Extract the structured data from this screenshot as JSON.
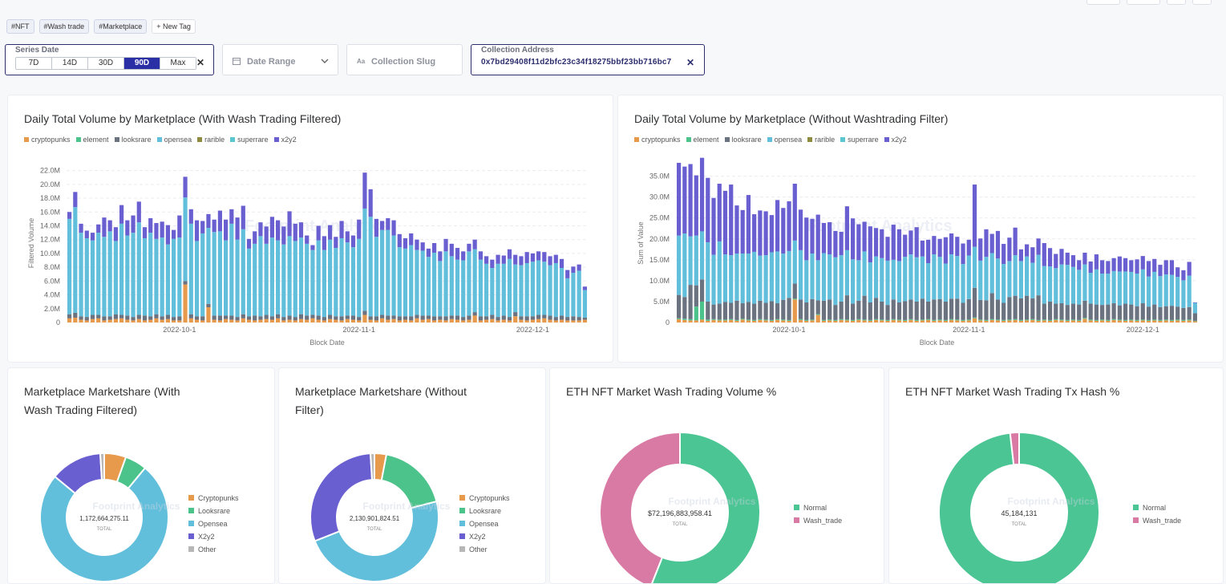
{
  "tags": [
    "#NFT",
    "#Wash trade",
    "#Marketplace"
  ],
  "new_tag_label": "New Tag",
  "filters": {
    "series_date": {
      "label": "Series Date",
      "options": [
        "7D",
        "14D",
        "30D",
        "90D",
        "Max"
      ],
      "selected": "90D"
    },
    "date_range": {
      "placeholder": "Date Range"
    },
    "collection_slug": {
      "placeholder": "Collection Slug"
    },
    "collection_address": {
      "label": "Collection Address",
      "value": "0x7bd29408f11d2bfc23c34f18275bbf23bb716bc7"
    }
  },
  "colors": {
    "cryptopunks": "#e89a4c",
    "element": "#4cc38a",
    "looksrare": "#6b7280",
    "opensea": "#62bfdc",
    "rarible": "#8e8a3f",
    "superrare": "#5cc6d0",
    "x2y2": "#6a5fd0",
    "other": "#b7b7b7",
    "normal": "#4cc594",
    "wash_trade": "#d97aa5"
  },
  "chart_data": [
    {
      "type": "bar",
      "title": "Daily Total Volume by Marketplace (With Wash Trading Filtered)",
      "xlabel": "Block Date",
      "ylabel": "Filtered Volume",
      "ylim": [
        0,
        23000000
      ],
      "yticks": [
        "0",
        "2.0M",
        "4.0M",
        "6.0M",
        "8.0M",
        "10.0M",
        "12.0M",
        "14.0M",
        "16.0M",
        "18.0M",
        "20.0M",
        "22.0M"
      ],
      "xticks": [
        {
          "label": "2022-10-1",
          "index": 19
        },
        {
          "label": "2022-11-1",
          "index": 50
        },
        {
          "label": "2022-12-1",
          "index": 80
        }
      ],
      "legend": [
        "cryptopunks",
        "element",
        "looksrare",
        "opensea",
        "rarible",
        "superrare",
        "x2y2"
      ],
      "stack_order": [
        "cryptopunks",
        "looksrare",
        "opensea",
        "x2y2"
      ],
      "series": [
        {
          "name": "cryptopunks",
          "values": [
            0.6,
            0.7,
            0.4,
            0.3,
            0.5,
            0.6,
            0.3,
            0.4,
            0.5,
            0.6,
            0.4,
            0.3,
            0.5,
            0.3,
            0.4,
            0.6,
            0.4,
            0.5,
            0.3,
            0.3,
            5.5,
            0.6,
            0.4,
            0.3,
            2.2,
            0.4,
            0.3,
            0.5,
            0.4,
            0.3,
            0.6,
            0.4,
            0.3,
            0.4,
            0.5,
            0.4,
            0.6,
            0.3,
            0.4,
            0.3,
            0.5,
            0.4,
            0.6,
            0.4,
            0.3,
            0.5,
            0.4,
            0.3,
            0.5,
            0.4,
            0.3,
            1.1,
            0.4,
            0.3,
            0.6,
            0.4,
            0.5,
            0.3,
            0.4,
            0.3,
            0.6,
            0.4,
            0.5,
            0.3,
            0.4,
            0.3,
            0.5,
            0.4,
            0.3,
            0.4,
            1.0,
            0.3,
            0.4,
            0.5,
            0.3,
            0.4,
            0.3,
            0.9,
            0.4,
            0.3,
            0.4,
            0.5,
            0.6,
            0.4,
            0.3,
            0.4,
            0.3,
            0.3,
            0.3,
            0.4
          ]
        },
        {
          "name": "looksrare",
          "values": [
            0.6,
            0.7,
            0.5,
            0.5,
            0.6,
            0.5,
            0.6,
            0.5,
            0.7,
            0.5,
            0.6,
            0.5,
            0.6,
            0.7,
            0.5,
            0.6,
            0.5,
            0.6,
            0.5,
            0.6,
            0.5,
            0.6,
            0.5,
            0.6,
            0.5,
            0.6,
            0.7,
            0.5,
            0.6,
            0.5,
            0.6,
            0.5,
            0.7,
            0.5,
            0.6,
            0.5,
            0.6,
            0.5,
            0.6,
            0.5,
            0.7,
            0.6,
            0.5,
            0.6,
            0.5,
            0.6,
            0.5,
            0.6,
            0.5,
            0.6,
            0.5,
            0.6,
            0.5,
            0.6,
            0.5,
            0.6,
            0.5,
            0.6,
            0.5,
            0.6,
            0.5,
            0.6,
            0.5,
            0.6,
            0.5,
            0.6,
            0.5,
            0.6,
            0.5,
            0.6,
            0.5,
            0.6,
            0.5,
            0.6,
            0.5,
            0.6,
            0.5,
            0.6,
            0.5,
            0.6,
            0.5,
            0.6,
            0.5,
            0.6,
            0.5,
            0.6,
            0.5,
            0.6,
            0.5,
            0.3
          ]
        },
        {
          "name": "opensea",
          "values": [
            13.8,
            15.3,
            12.1,
            11.4,
            10.8,
            11.9,
            11.5,
            12.3,
            10.6,
            13.2,
            11.6,
            12.2,
            13.4,
            11.2,
            12.1,
            10.9,
            11.4,
            10.2,
            11.3,
            11.4,
            12.1,
            13.1,
            10.9,
            12.0,
            11.0,
            12.1,
            12.2,
            10.9,
            13.3,
            11.2,
            12.3,
            9.8,
            10.4,
            11.6,
            10.3,
            11.4,
            10.7,
            10.5,
            11.5,
            11.0,
            11.1,
            10.4,
            9.4,
            10.9,
            9.7,
            10.9,
            9.9,
            11.3,
            10.6,
            9.9,
            11.3,
            14.8,
            14.4,
            11.5,
            12.3,
            12.4,
            11.6,
            10.0,
            9.8,
            10.3,
            9.4,
            9.4,
            8.5,
            9.2,
            8.0,
            9.4,
            8.6,
            8.1,
            8.2,
            9.3,
            9.1,
            8.2,
            7.6,
            6.8,
            7.7,
            7.5,
            8.4,
            6.9,
            7.4,
            7.7,
            7.9,
            7.9,
            7.7,
            7.3,
            7.8,
            6.9,
            5.6,
            6.3,
            6.7,
            4.0
          ]
        },
        {
          "name": "x2y2",
          "values": [
            1.0,
            2.2,
            1.3,
            1.1,
            1.1,
            1.2,
            2.8,
            1.6,
            2.0,
            2.7,
            2.2,
            2.5,
            3.0,
            1.6,
            2.1,
            2.3,
            2.3,
            2.8,
            1.3,
            3.2,
            3.0,
            2.1,
            3.0,
            1.8,
            2.0,
            1.8,
            3.0,
            3.0,
            2.1,
            3.2,
            3.4,
            1.4,
            1.8,
            2.0,
            2.5,
            3.0,
            2.9,
            2.6,
            3.6,
            2.5,
            2.2,
            1.2,
            0.7,
            2.1,
            2.0,
            2.1,
            1.6,
            2.5,
            1.6,
            1.7,
            2.8,
            5.2,
            4.0,
            2.6,
            1.3,
            1.7,
            2.2,
            1.9,
            1.5,
            1.7,
            1.5,
            1.2,
            1.2,
            1.4,
            1.4,
            1.8,
            1.8,
            1.7,
            1.3,
            1.1,
            1.4,
            1.2,
            1.1,
            1.2,
            1.3,
            1.2,
            1.4,
            1.4,
            1.3,
            1.6,
            1.2,
            1.3,
            1.4,
            1.3,
            1.2,
            1.3,
            1.2,
            0.9,
            0.9,
            0.5
          ]
        }
      ]
    },
    {
      "type": "bar",
      "title": "Daily Total Volume by Marketplace (Without Washtrading Filter)",
      "xlabel": "Block Date",
      "ylabel": "Sum of Value",
      "ylim": [
        0,
        38000000
      ],
      "yticks": [
        "0",
        "5.0M",
        "10.0M",
        "15.0M",
        "20.0M",
        "25.0M",
        "30.0M",
        "35.0M"
      ],
      "xticks": [
        {
          "label": "2022-10-1",
          "index": 19
        },
        {
          "label": "2022-11-1",
          "index": 50
        },
        {
          "label": "2022-12-1",
          "index": 80
        }
      ],
      "legend": [
        "cryptopunks",
        "element",
        "looksrare",
        "opensea",
        "rarible",
        "superrare",
        "x2y2"
      ],
      "stack_order": [
        "cryptopunks",
        "element",
        "looksrare",
        "opensea",
        "x2y2"
      ],
      "series": [
        {
          "name": "cryptopunks",
          "values": [
            0.8,
            0.6,
            0.5,
            0.5,
            0.7,
            0.4,
            0.6,
            0.5,
            0.5,
            0.6,
            0.4,
            0.7,
            0.5,
            0.4,
            0.6,
            0.5,
            0.4,
            0.6,
            0.5,
            0.4,
            5.5,
            0.6,
            0.4,
            0.5,
            1.8,
            0.4,
            0.5,
            0.4,
            0.6,
            0.5,
            0.4,
            0.6,
            0.5,
            0.4,
            0.6,
            0.5,
            0.4,
            0.6,
            0.5,
            0.4,
            0.6,
            0.4,
            0.5,
            0.6,
            0.4,
            0.5,
            0.4,
            0.6,
            0.5,
            0.4,
            0.5,
            1.0,
            0.5,
            0.4,
            0.6,
            0.5,
            0.4,
            0.5,
            0.6,
            0.4,
            0.5,
            0.6,
            0.4,
            0.5,
            0.4,
            0.6,
            0.5,
            0.4,
            0.5,
            0.4,
            0.9,
            0.5,
            0.4,
            0.5,
            0.4,
            0.6,
            0.5,
            0.4,
            0.5,
            0.4,
            0.5,
            0.4,
            0.5,
            0.4,
            0.5,
            0.4,
            0.5,
            0.4,
            0.5,
            0.3
          ]
        },
        {
          "name": "element",
          "values": [
            0.2,
            0.3,
            0.3,
            3.3,
            4.3,
            0.3,
            0.2,
            0.2,
            0.2,
            0.2,
            0.2,
            0.2,
            0.2,
            0.2,
            0.2,
            0.2,
            0.2,
            0.2,
            0.2,
            0.2,
            0.2,
            0.2,
            0.2,
            0.2,
            0.2,
            0.2,
            0.2,
            0.2,
            0.2,
            0.2,
            0.2,
            0.2,
            0.2,
            0.2,
            0.2,
            0.2,
            0.2,
            0.2,
            0.2,
            0.2,
            0.2,
            0.2,
            0.2,
            0.2,
            0.2,
            0.2,
            0.2,
            0.2,
            0.2,
            0.2,
            0.2,
            0.2,
            0.2,
            0.2,
            0.2,
            0.2,
            0.2,
            0.2,
            0.2,
            0.2,
            0.2,
            0.2,
            0.2,
            0.2,
            0.2,
            0.2,
            0.2,
            0.2,
            0.2,
            0.2,
            0.2,
            0.2,
            0.2,
            0.2,
            0.2,
            0.2,
            0.2,
            0.2,
            0.2,
            0.2,
            0.2,
            0.2,
            0.2,
            0.2,
            0.2,
            0.2,
            0.2,
            0.2,
            0.2,
            0.1
          ]
        },
        {
          "name": "looksrare",
          "values": [
            5.6,
            5.2,
            8.2,
            5.1,
            5.3,
            4.3,
            3.5,
            3.8,
            4.2,
            3.9,
            4.6,
            3.7,
            4.2,
            3.9,
            4.4,
            4.0,
            4.5,
            3.8,
            4.7,
            5.3,
            3.6,
            4.7,
            4.2,
            4.9,
            3.3,
            4.6,
            4.8,
            3.6,
            4.2,
            5.8,
            3.9,
            4.4,
            5.7,
            4.2,
            5.1,
            4.3,
            3.6,
            4.7,
            4.1,
            4.5,
            4.7,
            4.4,
            5.0,
            4.2,
            4.9,
            4.9,
            4.4,
            4.9,
            5.0,
            4.1,
            4.9,
            7.1,
            4.7,
            4.7,
            6.2,
            4.8,
            4.1,
            5.4,
            5.6,
            5.2,
            5.7,
            5.0,
            5.9,
            3.8,
            4.4,
            3.7,
            3.9,
            3.6,
            3.8,
            3.7,
            4.1,
            3.8,
            3.7,
            3.5,
            3.7,
            3.8,
            3.4,
            3.9,
            3.6,
            3.3,
            3.9,
            3.2,
            3.6,
            3.1,
            3.2,
            3.4,
            3.1,
            2.9,
            3.0,
            1.8
          ]
        },
        {
          "name": "opensea",
          "values": [
            14.2,
            15.2,
            11.6,
            11.9,
            11.5,
            14.2,
            11.9,
            14.9,
            11.4,
            11.4,
            11.3,
            11.9,
            11.6,
            12.4,
            10.8,
            11.4,
            11.7,
            12.4,
            11.1,
            11.2,
            10.3,
            11.8,
            10.1,
            10.9,
            9.6,
            11.4,
            10.8,
            11.4,
            11.1,
            10.8,
            10.6,
            9.7,
            10.6,
            9.6,
            9.9,
            10.4,
            10.6,
            9.5,
            9.9,
            10.6,
            10.8,
            10.6,
            10.1,
            9.2,
            10.8,
            10.1,
            9.1,
            10.6,
            10.2,
            9.3,
            10.4,
            9.8,
            9.4,
            10.4,
            9.6,
            9.8,
            9.3,
            8.6,
            9.7,
            8.9,
            9.4,
            8.5,
            9.7,
            9.0,
            8.4,
            8.5,
            9.3,
            9.6,
            8.8,
            8.3,
            8.7,
            7.4,
            8.4,
            7.5,
            7.4,
            7.7,
            8.1,
            7.7,
            7.8,
            7.8,
            8.1,
            7.2,
            7.8,
            7.4,
            7.6,
            7.4,
            7.1,
            6.6,
            7.5,
            2.5
          ]
        },
        {
          "name": "x2y2",
          "values": [
            17.4,
            16.0,
            17.3,
            14.4,
            17.6,
            15.4,
            13.6,
            13.8,
            15.2,
            16.9,
            11.5,
            10.4,
            14.0,
            9.0,
            10.8,
            10.5,
            8.9,
            12.3,
            10.9,
            11.9,
            13.6,
            9.7,
            10.2,
            8.3,
            10.9,
            7.2,
            7.7,
            6.3,
            5.6,
            10.5,
            9.8,
            8.6,
            7.1,
            8.6,
            6.8,
            6.9,
            5.7,
            8.4,
            7.6,
            5.3,
            5.7,
            7.2,
            3.8,
            5.6,
            4.4,
            4.3,
            6.3,
            5.0,
            4.6,
            4.9,
            3.8,
            14.9,
            5.3,
            6.6,
            4.6,
            6.6,
            4.8,
            5.6,
            6.6,
            2.8,
            2.9,
            3.7,
            3.9,
            5.5,
            4.4,
            3.4,
            3.7,
            2.9,
            2.8,
            2.3,
            2.8,
            2.7,
            3.6,
            3.2,
            3.0,
            3.1,
            3.6,
            3.2,
            2.8,
            3.4,
            3.2,
            3.7,
            3.1,
            2.7,
            3.4,
            3.5,
            2.3,
            2.4,
            3.3,
            0.1
          ]
        }
      ]
    },
    {
      "type": "pie",
      "title_lines": [
        "Marketplace Marketshare (With",
        "Wash Trading Filtered)"
      ],
      "total": "1,172,664,275.11",
      "total_label": "TOTAL",
      "slices": [
        {
          "name": "Cryptopunks",
          "value": 5.5,
          "color": "#e89a4c"
        },
        {
          "name": "Looksrare",
          "value": 5.5,
          "color": "#4cc38a"
        },
        {
          "name": "Opensea",
          "value": 75,
          "color": "#62bfdc"
        },
        {
          "name": "X2y2",
          "value": 13,
          "color": "#6a5fd0"
        },
        {
          "name": "Other",
          "value": 1,
          "color": "#b7b7b7"
        }
      ]
    },
    {
      "type": "pie",
      "title_lines": [
        "Marketplace Marketshare (Without",
        "Filter)"
      ],
      "total": "2,130,901,824.51",
      "total_label": "TOTAL",
      "slices": [
        {
          "name": "Cryptopunks",
          "value": 3,
          "color": "#e89a4c"
        },
        {
          "name": "Looksrare",
          "value": 18,
          "color": "#4cc38a"
        },
        {
          "name": "Opensea",
          "value": 48,
          "color": "#62bfdc"
        },
        {
          "name": "X2y2",
          "value": 30,
          "color": "#6a5fd0"
        },
        {
          "name": "Other",
          "value": 1,
          "color": "#b7b7b7"
        }
      ]
    },
    {
      "type": "pie",
      "title_lines": [
        "ETH NFT Market Wash Trading Volume %"
      ],
      "total": "$72,196,883,958.41",
      "total_label": "TOTAL",
      "slices": [
        {
          "name": "Normal",
          "value": 56,
          "color": "#4cc594"
        },
        {
          "name": "Wash_trade",
          "value": 44,
          "color": "#d97aa5"
        }
      ]
    },
    {
      "type": "pie",
      "title_lines": [
        "ETH NFT Market Wash Trading Tx Hash %"
      ],
      "total": "45,184,131",
      "total_label": "TOTAL",
      "slices": [
        {
          "name": "Normal",
          "value": 98.2,
          "color": "#4cc594"
        },
        {
          "name": "Wash_trade",
          "value": 1.8,
          "color": "#d97aa5"
        }
      ]
    }
  ]
}
